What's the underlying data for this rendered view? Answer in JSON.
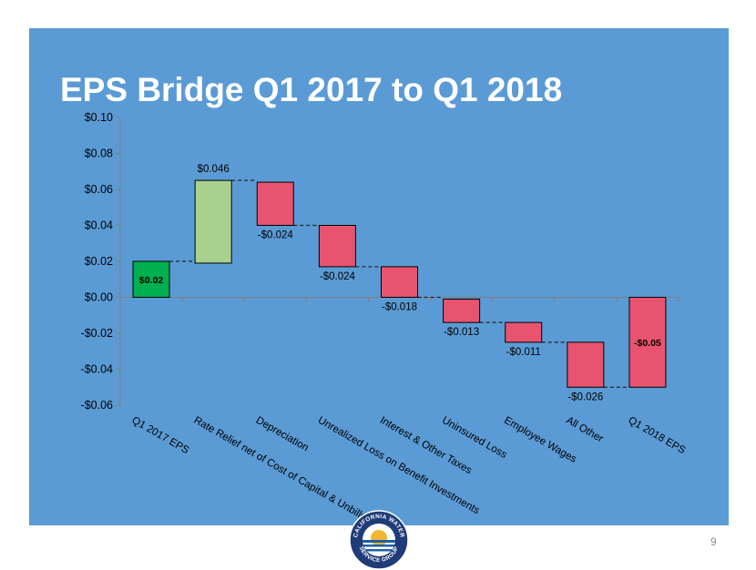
{
  "slide": {
    "title": "EPS Bridge Q1 2017 to Q1 2018",
    "page_number": "9"
  },
  "logo": {
    "text_top": "CALIFORNIA WATER",
    "text_bottom": "SERVICE GROUP"
  },
  "colors": {
    "background_panel": "#5b9bd5",
    "start_total": "#00b050",
    "increase": "#a9d18e",
    "decrease": "#e8546f",
    "end_total": "#e8546f",
    "text": "#000000"
  },
  "chart_data": {
    "type": "bar",
    "subtype": "waterfall",
    "title": "",
    "xlabel": "",
    "ylabel": "",
    "ylim": [
      -0.06,
      0.1
    ],
    "yticks": [
      0.1,
      0.08,
      0.06,
      0.04,
      0.02,
      0.0,
      -0.02,
      -0.04,
      -0.06
    ],
    "ytick_labels": [
      "$0.10",
      "$0.08",
      "$0.06",
      "$0.04",
      "$0.02",
      "$0.00",
      "-$0.02",
      "-$0.04",
      "-$0.06"
    ],
    "grid": false,
    "legend": "none",
    "categories": [
      "Q1 2017 EPS",
      "Rate Relief net of Cost of Capital & Unbilled",
      "Depreciation",
      "Unrealized Loss on Benefit Investments",
      "Interest & Other Taxes",
      "Uninsured Loss",
      "Employee Wages",
      "All Other",
      "Q1 2018 EPS"
    ],
    "bars": [
      {
        "kind": "total",
        "start": 0.0,
        "end": 0.02,
        "label": "$0.02"
      },
      {
        "kind": "increase",
        "start": 0.019,
        "end": 0.065,
        "label": "$0.046"
      },
      {
        "kind": "decrease",
        "start": 0.064,
        "end": 0.04,
        "label": "-$0.024"
      },
      {
        "kind": "decrease",
        "start": 0.04,
        "end": 0.017,
        "label": "-$0.024"
      },
      {
        "kind": "decrease",
        "start": 0.017,
        "end": 0.0,
        "label": "-$0.018"
      },
      {
        "kind": "decrease",
        "start": -0.001,
        "end": -0.014,
        "label": "-$0.013"
      },
      {
        "kind": "decrease",
        "start": -0.014,
        "end": -0.025,
        "label": "-$0.011"
      },
      {
        "kind": "decrease",
        "start": -0.025,
        "end": -0.05,
        "label": "-$0.026"
      },
      {
        "kind": "total",
        "start": 0.0,
        "end": -0.05,
        "label": "-$0.05"
      }
    ]
  }
}
